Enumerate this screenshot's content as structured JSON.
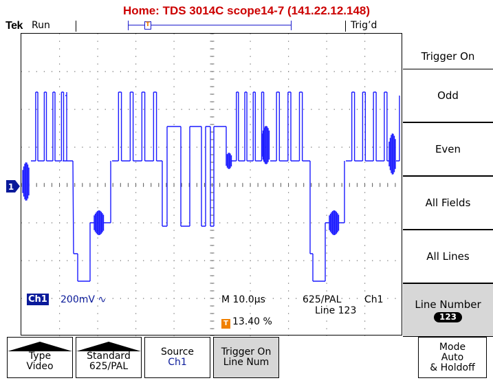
{
  "window_title": "Home:  TDS 3014C  scope14-7  (141.22.12.148)",
  "status": {
    "brand": "Tek",
    "run": "Run",
    "trig": "Trig’d"
  },
  "screen": {
    "channel": "Ch1",
    "volts_div": "200mV",
    "coupling_symbol": "∿",
    "timebase": "M 10.0µs",
    "standard": "625/PAL",
    "trigger_source": "Ch1",
    "line": "Line 123",
    "trigger_position": "13.40 %",
    "trigger_badge": "T",
    "channel_marker": "1",
    "trace_color": "#1a1aff"
  },
  "side_menu": {
    "title": "Trigger On",
    "items": [
      {
        "label": "Odd"
      },
      {
        "label": "Even"
      },
      {
        "label": "All Fields"
      },
      {
        "label": "All Lines"
      },
      {
        "label": "Line Number",
        "value": "123"
      }
    ]
  },
  "bottom_menu": {
    "type": {
      "title": "Type",
      "value": "Video"
    },
    "standard": {
      "title": "Standard",
      "value": "625/PAL"
    },
    "source": {
      "title": "Source",
      "value": "Ch1"
    },
    "trigger_on": {
      "title": "Trigger On",
      "value": "Line Num"
    },
    "mode": {
      "title": "Mode",
      "value": "Auto",
      "extra": "& Holdoff"
    }
  }
}
